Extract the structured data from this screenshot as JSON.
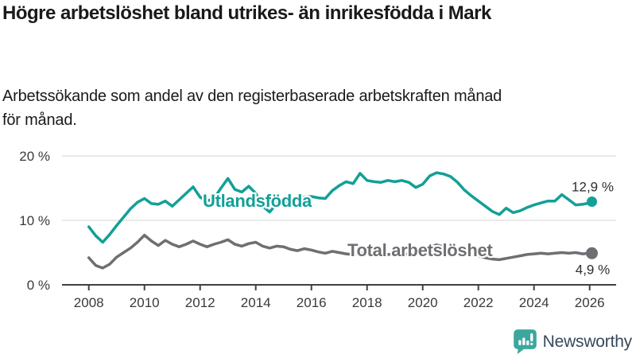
{
  "header": {
    "title": "Högre arbetslöshet bland utrikes- än inrikesfödda i Mark",
    "subtitle": "Arbetssökande som andel av den registerbaserade arbetskraften månad för månad."
  },
  "chart_data": {
    "type": "line",
    "title": "Högre arbetslöshet bland utrikes- än inrikesfödda i Mark",
    "unit": "%",
    "ylim": [
      0,
      20
    ],
    "yticks": [
      {
        "value": 0,
        "label": "0 %"
      },
      {
        "value": 10,
        "label": "10 %"
      },
      {
        "value": 20,
        "label": "20 %"
      }
    ],
    "xticks": [
      2008,
      2010,
      2012,
      2014,
      2016,
      2018,
      2020,
      2022,
      2024,
      2026
    ],
    "grid": "horizontal",
    "legend": "inline-labels",
    "x": [
      2008,
      2008.25,
      2008.5,
      2008.75,
      2009,
      2009.25,
      2009.5,
      2009.75,
      2010,
      2010.25,
      2010.5,
      2010.75,
      2011,
      2011.25,
      2011.5,
      2011.75,
      2012,
      2012.25,
      2012.5,
      2012.75,
      2013,
      2013.25,
      2013.5,
      2013.75,
      2014,
      2014.25,
      2014.5,
      2014.75,
      2015,
      2015.25,
      2015.5,
      2015.75,
      2016,
      2016.25,
      2016.5,
      2016.75,
      2017,
      2017.25,
      2017.5,
      2017.75,
      2018,
      2018.25,
      2018.5,
      2018.75,
      2019,
      2019.25,
      2019.5,
      2019.75,
      2020,
      2020.25,
      2020.5,
      2020.75,
      2021,
      2021.25,
      2021.5,
      2021.75,
      2022,
      2022.25,
      2022.5,
      2022.75,
      2023,
      2023.25,
      2023.5,
      2023.75,
      2024,
      2024.25,
      2024.5,
      2024.75,
      2025,
      2025.25,
      2025.5,
      2025.75,
      2026,
      2026.08
    ],
    "series": [
      {
        "name": "Utlandsfödda",
        "color": "#12a098",
        "end_label": "12,9 %",
        "end_value": 12.9,
        "values": [
          9.0,
          7.6,
          6.6,
          7.8,
          9.2,
          10.5,
          11.8,
          12.8,
          13.4,
          12.6,
          12.5,
          13.0,
          12.2,
          13.2,
          14.2,
          15.2,
          13.6,
          13.0,
          13.4,
          15.0,
          16.5,
          14.8,
          14.4,
          15.3,
          14.2,
          12.2,
          11.3,
          12.6,
          12.8,
          13.0,
          13.3,
          13.6,
          13.7,
          13.5,
          13.4,
          14.6,
          15.4,
          16.0,
          15.7,
          17.3,
          16.2,
          16.0,
          15.9,
          16.2,
          16.0,
          16.2,
          15.9,
          15.1,
          15.6,
          16.9,
          17.4,
          17.2,
          16.8,
          15.9,
          14.7,
          13.8,
          13.0,
          12.2,
          11.4,
          10.9,
          11.9,
          11.2,
          11.5,
          12.0,
          12.4,
          12.7,
          13.0,
          13.0,
          14.0,
          13.2,
          12.4,
          12.5,
          12.7,
          12.9
        ]
      },
      {
        "name": "Total arbetslöshet",
        "color": "#6f6f73",
        "end_label": "4,9 %",
        "end_value": 4.9,
        "values": [
          4.2,
          3.0,
          2.6,
          3.2,
          4.3,
          5.0,
          5.7,
          6.6,
          7.7,
          6.8,
          6.1,
          6.9,
          6.3,
          5.9,
          6.3,
          6.8,
          6.3,
          5.9,
          6.3,
          6.6,
          7.0,
          6.3,
          6.0,
          6.4,
          6.6,
          6.0,
          5.7,
          6.0,
          5.9,
          5.5,
          5.3,
          5.6,
          5.4,
          5.1,
          4.9,
          5.2,
          5.0,
          4.8,
          4.7,
          5.0,
          4.8,
          4.6,
          4.5,
          4.7,
          4.8,
          4.7,
          4.8,
          4.9,
          5.0,
          5.9,
          6.2,
          5.9,
          5.7,
          5.4,
          5.0,
          4.7,
          4.5,
          4.2,
          4.0,
          3.9,
          4.1,
          4.3,
          4.5,
          4.7,
          4.8,
          4.9,
          4.8,
          4.9,
          5.0,
          4.9,
          5.0,
          4.8,
          4.9,
          4.9
        ]
      }
    ],
    "colors": {
      "grid": "#dcdcdc",
      "axis": "#404040",
      "axis_text": "#3a3a3a",
      "value_label_text": "#2e2e2e"
    }
  },
  "footer": {
    "brand": "Newsworthy",
    "brand_color": "#36495a",
    "icon": "newsworthy-logo-icon",
    "icon_color": "#3ba79e"
  }
}
